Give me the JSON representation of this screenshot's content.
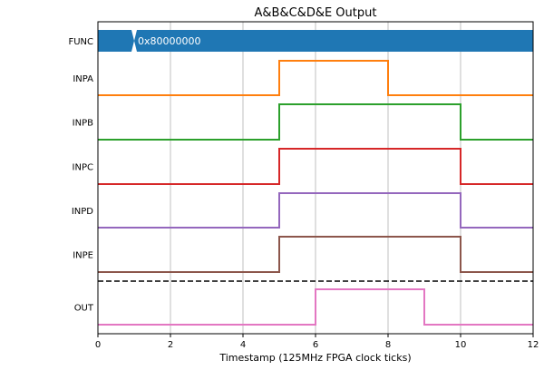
{
  "chart_data": {
    "type": "line",
    "title": "A&B&C&D&E Output",
    "xlabel": "Timestamp (125MHz FPGA clock ticks)",
    "ylabel": "",
    "xlim": [
      0,
      12
    ],
    "x_ticks": [
      0,
      2,
      4,
      6,
      8,
      10,
      12
    ],
    "grid": "vertical",
    "bus": {
      "name": "FUNC",
      "color": "#1f77b4",
      "transition_x": 1,
      "value_label": "0x80000000"
    },
    "series": [
      {
        "name": "INPA",
        "color": "#ff7f0e",
        "x": [
          0,
          5,
          5,
          8,
          8,
          12
        ],
        "y": [
          0,
          0,
          1,
          1,
          0,
          0
        ]
      },
      {
        "name": "INPB",
        "color": "#2ca02c",
        "x": [
          0,
          5,
          5,
          10,
          10,
          12
        ],
        "y": [
          0,
          0,
          1,
          1,
          0,
          0
        ]
      },
      {
        "name": "INPC",
        "color": "#d62728",
        "x": [
          0,
          5,
          5,
          10,
          10,
          12
        ],
        "y": [
          0,
          0,
          1,
          1,
          0,
          0
        ]
      },
      {
        "name": "INPD",
        "color": "#9467bd",
        "x": [
          0,
          5,
          5,
          10,
          10,
          12
        ],
        "y": [
          0,
          0,
          1,
          1,
          0,
          0
        ]
      },
      {
        "name": "INPE",
        "color": "#8c564b",
        "x": [
          0,
          5,
          5,
          10,
          10,
          12
        ],
        "y": [
          0,
          0,
          1,
          1,
          0,
          0
        ]
      }
    ],
    "output": {
      "name": "OUT",
      "color": "#e377c2",
      "x": [
        0,
        6,
        6,
        9,
        9,
        12
      ],
      "y": [
        0,
        0,
        1,
        1,
        0,
        0
      ]
    }
  }
}
